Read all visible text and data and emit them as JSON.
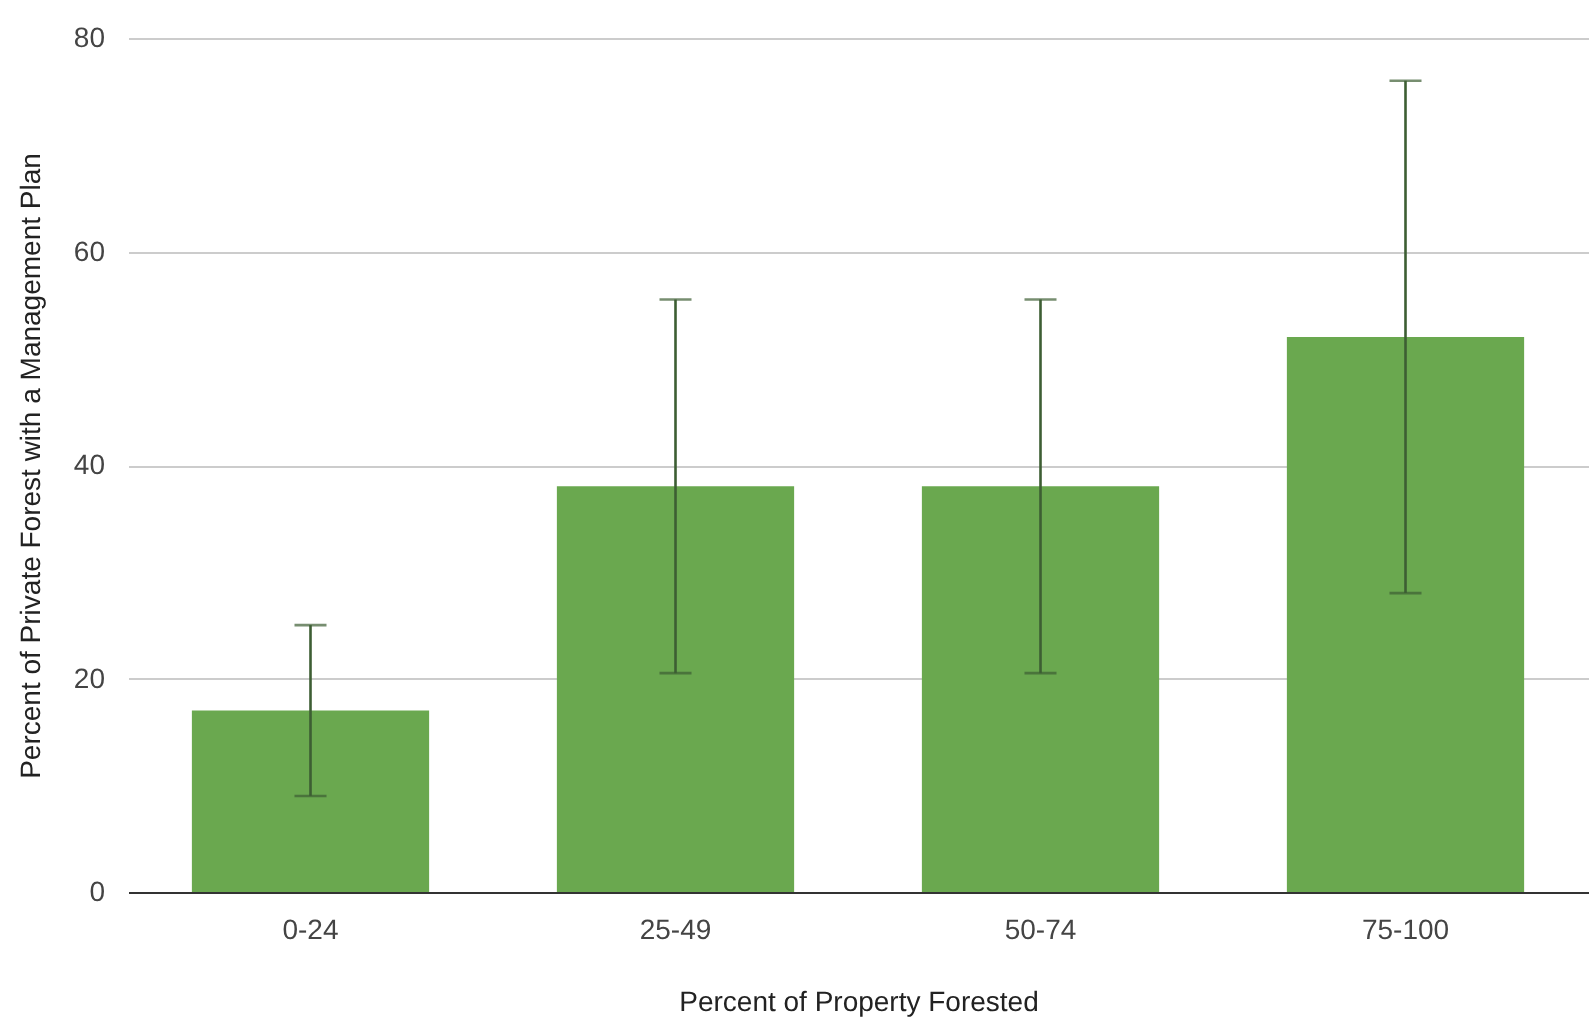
{
  "chart_data": {
    "type": "bar",
    "xlabel": "Percent of Property Forested",
    "ylabel": "Percent of Private Forest with a Management Plan",
    "categories": [
      "0-24",
      "25-49",
      "50-74",
      "75-100"
    ],
    "values": [
      17,
      38,
      38,
      52
    ],
    "errors": [
      [
        9,
        25
      ],
      [
        20.5,
        55.5
      ],
      [
        20.5,
        55.5
      ],
      [
        28,
        76
      ]
    ],
    "color": "#6aa84f",
    "ylim": [
      0,
      80
    ],
    "yticks": [
      0,
      20,
      40,
      60,
      80
    ],
    "grid": "y"
  }
}
